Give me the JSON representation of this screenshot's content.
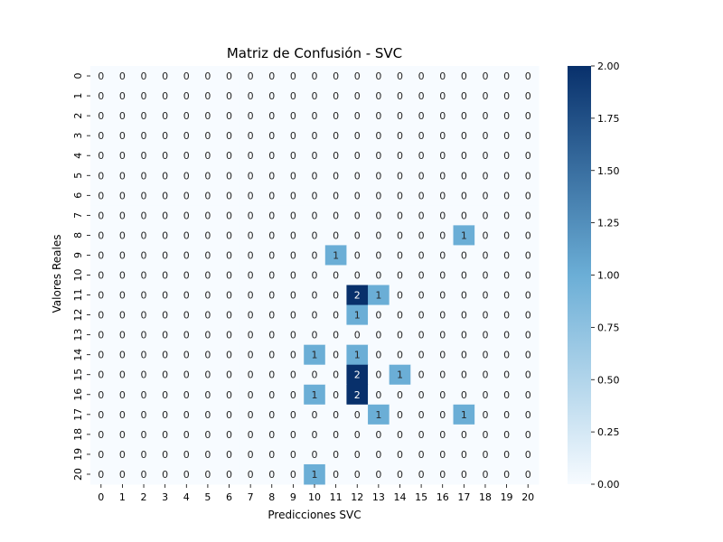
{
  "chart_data": {
    "type": "heatmap",
    "title": "Matriz de Confusión - SVC",
    "xlabel": "Predicciones SVC",
    "ylabel": "Valores Reales",
    "x_categories": [
      "0",
      "1",
      "2",
      "3",
      "4",
      "5",
      "6",
      "7",
      "8",
      "9",
      "10",
      "11",
      "12",
      "13",
      "14",
      "15",
      "16",
      "17",
      "18",
      "19",
      "20"
    ],
    "y_categories": [
      "0",
      "1",
      "2",
      "3",
      "4",
      "5",
      "6",
      "7",
      "8",
      "9",
      "10",
      "11",
      "12",
      "13",
      "14",
      "15",
      "16",
      "17",
      "18",
      "19",
      "20"
    ],
    "matrix": [
      [
        0,
        0,
        0,
        0,
        0,
        0,
        0,
        0,
        0,
        0,
        0,
        0,
        0,
        0,
        0,
        0,
        0,
        0,
        0,
        0,
        0
      ],
      [
        0,
        0,
        0,
        0,
        0,
        0,
        0,
        0,
        0,
        0,
        0,
        0,
        0,
        0,
        0,
        0,
        0,
        0,
        0,
        0,
        0
      ],
      [
        0,
        0,
        0,
        0,
        0,
        0,
        0,
        0,
        0,
        0,
        0,
        0,
        0,
        0,
        0,
        0,
        0,
        0,
        0,
        0,
        0
      ],
      [
        0,
        0,
        0,
        0,
        0,
        0,
        0,
        0,
        0,
        0,
        0,
        0,
        0,
        0,
        0,
        0,
        0,
        0,
        0,
        0,
        0
      ],
      [
        0,
        0,
        0,
        0,
        0,
        0,
        0,
        0,
        0,
        0,
        0,
        0,
        0,
        0,
        0,
        0,
        0,
        0,
        0,
        0,
        0
      ],
      [
        0,
        0,
        0,
        0,
        0,
        0,
        0,
        0,
        0,
        0,
        0,
        0,
        0,
        0,
        0,
        0,
        0,
        0,
        0,
        0,
        0
      ],
      [
        0,
        0,
        0,
        0,
        0,
        0,
        0,
        0,
        0,
        0,
        0,
        0,
        0,
        0,
        0,
        0,
        0,
        0,
        0,
        0,
        0
      ],
      [
        0,
        0,
        0,
        0,
        0,
        0,
        0,
        0,
        0,
        0,
        0,
        0,
        0,
        0,
        0,
        0,
        0,
        0,
        0,
        0,
        0
      ],
      [
        0,
        0,
        0,
        0,
        0,
        0,
        0,
        0,
        0,
        0,
        0,
        0,
        0,
        0,
        0,
        0,
        0,
        1,
        0,
        0,
        0
      ],
      [
        0,
        0,
        0,
        0,
        0,
        0,
        0,
        0,
        0,
        0,
        0,
        1,
        0,
        0,
        0,
        0,
        0,
        0,
        0,
        0,
        0
      ],
      [
        0,
        0,
        0,
        0,
        0,
        0,
        0,
        0,
        0,
        0,
        0,
        0,
        0,
        0,
        0,
        0,
        0,
        0,
        0,
        0,
        0
      ],
      [
        0,
        0,
        0,
        0,
        0,
        0,
        0,
        0,
        0,
        0,
        0,
        0,
        2,
        1,
        0,
        0,
        0,
        0,
        0,
        0,
        0
      ],
      [
        0,
        0,
        0,
        0,
        0,
        0,
        0,
        0,
        0,
        0,
        0,
        0,
        1,
        0,
        0,
        0,
        0,
        0,
        0,
        0,
        0
      ],
      [
        0,
        0,
        0,
        0,
        0,
        0,
        0,
        0,
        0,
        0,
        0,
        0,
        0,
        0,
        0,
        0,
        0,
        0,
        0,
        0,
        0
      ],
      [
        0,
        0,
        0,
        0,
        0,
        0,
        0,
        0,
        0,
        0,
        1,
        0,
        1,
        0,
        0,
        0,
        0,
        0,
        0,
        0,
        0
      ],
      [
        0,
        0,
        0,
        0,
        0,
        0,
        0,
        0,
        0,
        0,
        0,
        0,
        2,
        0,
        1,
        0,
        0,
        0,
        0,
        0,
        0
      ],
      [
        0,
        0,
        0,
        0,
        0,
        0,
        0,
        0,
        0,
        0,
        1,
        0,
        2,
        0,
        0,
        0,
        0,
        0,
        0,
        0,
        0
      ],
      [
        0,
        0,
        0,
        0,
        0,
        0,
        0,
        0,
        0,
        0,
        0,
        0,
        0,
        1,
        0,
        0,
        0,
        1,
        0,
        0,
        0
      ],
      [
        0,
        0,
        0,
        0,
        0,
        0,
        0,
        0,
        0,
        0,
        0,
        0,
        0,
        0,
        0,
        0,
        0,
        0,
        0,
        0,
        0
      ],
      [
        0,
        0,
        0,
        0,
        0,
        0,
        0,
        0,
        0,
        0,
        0,
        0,
        0,
        0,
        0,
        0,
        0,
        0,
        0,
        0,
        0
      ],
      [
        0,
        0,
        0,
        0,
        0,
        0,
        0,
        0,
        0,
        0,
        1,
        0,
        0,
        0,
        0,
        0,
        0,
        0,
        0,
        0,
        0
      ]
    ],
    "colorbar": {
      "colormap": "Blues",
      "vmin": 0.0,
      "vmax": 2.0,
      "ticks": [
        "0.00",
        "0.25",
        "0.50",
        "0.75",
        "1.00",
        "1.25",
        "1.50",
        "1.75",
        "2.00"
      ],
      "low_color": "#f7fbff",
      "mid_color": "#6baed6",
      "high_color": "#08306b"
    },
    "grid": false,
    "legend": "none"
  }
}
